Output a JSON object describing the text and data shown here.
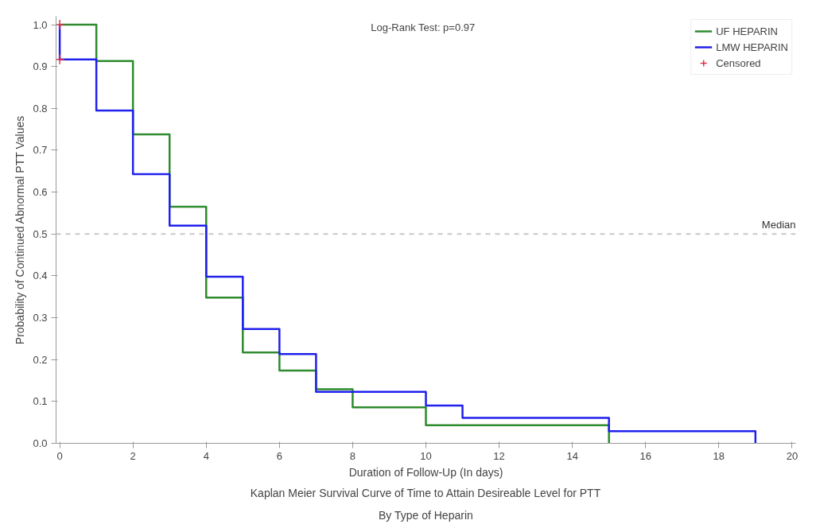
{
  "chart_data": {
    "type": "step",
    "title": "Kaplan Meier Survival Curve of Time to Attain Desireable Level for PTT\nBy Type of Heparin",
    "xlabel": "Duration of Follow-Up (In days)",
    "ylabel": "Probability of Continued Abnormal PTT Values",
    "annotations": [
      "Log-Rank Test:   p=0.97"
    ],
    "series": [
      {
        "name": "UF HEPARIN",
        "color": "#2e8b2e",
        "x": [
          0,
          1,
          2,
          3,
          4,
          5,
          6,
          7,
          8,
          10,
          15
        ],
        "values": [
          1.0,
          0.913,
          0.738,
          0.565,
          0.348,
          0.217,
          0.174,
          0.129,
          0.086,
          0.043,
          0.0
        ]
      },
      {
        "name": "LMW HEPARIN",
        "color": "#2020ee",
        "x": [
          0,
          0,
          1,
          2,
          3,
          4,
          5,
          6,
          7,
          10,
          11,
          15,
          19
        ],
        "values": [
          1.0,
          0.917,
          0.795,
          0.643,
          0.52,
          0.398,
          0.273,
          0.213,
          0.123,
          0.09,
          0.061,
          0.029,
          0.0
        ]
      },
      {
        "name": "Censored",
        "type": "scatter",
        "marker": "cross",
        "color": "#e0304a",
        "x": [
          0,
          0
        ],
        "values": [
          1.0,
          0.917
        ]
      }
    ],
    "ref_lines": [
      {
        "axis": "y",
        "value": 0.5,
        "label": "Median",
        "color": "#c8c8c8",
        "line_style": "dashed"
      }
    ],
    "xlim": [
      -0.1,
      20.1
    ],
    "ylim": [
      0,
      1.02
    ],
    "xticks": [
      0,
      2,
      4,
      6,
      8,
      10,
      12,
      14,
      16,
      18,
      20
    ],
    "yticks": [
      {
        "value": 0,
        "label": "0.0"
      },
      {
        "value": 0.1,
        "label": "0.1"
      },
      {
        "value": 0.2,
        "label": "0.2"
      },
      {
        "value": 0.3,
        "label": "0.3"
      },
      {
        "value": 0.4,
        "label": "0.4"
      },
      {
        "value": 0.5,
        "label": "0.5"
      },
      {
        "value": 0.6,
        "label": "0.6"
      },
      {
        "value": 0.7,
        "label": "0.7"
      },
      {
        "value": 0.8,
        "label": "0.8"
      },
      {
        "value": 0.9,
        "label": "0.9"
      },
      {
        "value": 1.0,
        "label": "1.0"
      }
    ],
    "grid": false,
    "legend": "top right"
  }
}
